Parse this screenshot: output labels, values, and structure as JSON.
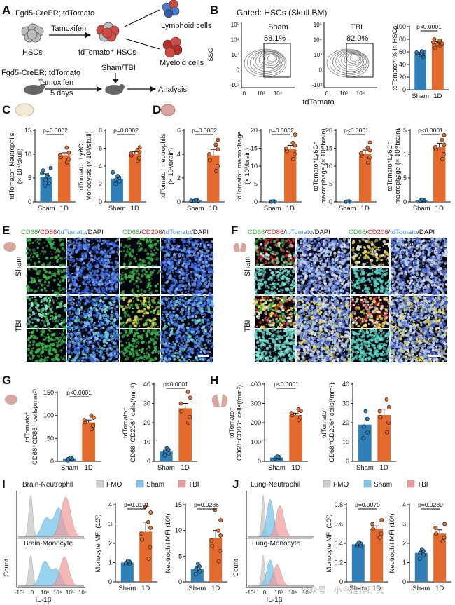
{
  "colors": {
    "sham": "#2f7fb8",
    "tbi": "#e36a2c",
    "fmo": "#cfcfcf",
    "sham_hist": "#7ec8ec",
    "tbi_hist": "#ef9a9a",
    "contour": "#666666"
  },
  "panel_a": {
    "letter": "A",
    "genotype_top": "Fgd5-CreER; tdTomato",
    "tamoxifen": "Tamoxifen",
    "hsc_label": "HSCs",
    "tdhsc_label": "tdTomato⁺ HSCs",
    "lymphoid": "Lymphoid cells",
    "myeloid": "Myeloid cells",
    "genotype_bottom": "Fgd5-CreER; tdTomato",
    "tamoxifen_bottom": "Tamoxifen",
    "days": "5 days",
    "sham_tbi": "Sham/TBI",
    "analysis": "Analysis"
  },
  "panel_b": {
    "letter": "B",
    "title": "Gated: HSCs (Skull BM)",
    "ylabel": "SSC",
    "xlabel": "tdTomato",
    "sham_label": "Sham",
    "sham_pct": "58.1%",
    "tbi_label": "TBI",
    "tbi_pct": "82.0%",
    "y_ticks": [
      "10⁵",
      "10⁴",
      "10³",
      "0",
      "-10³"
    ],
    "x_ticks": [
      "0",
      "10³",
      "10⁴"
    ]
  },
  "chart_data": [
    {
      "id": "B_bar",
      "type": "bar",
      "title": "",
      "ylabel": "tdTomato⁺ % in HSCs",
      "categories": [
        "Sham",
        "1D"
      ],
      "values": [
        57,
        74
      ],
      "sem": [
        2,
        2
      ],
      "ylim": [
        0,
        100
      ],
      "yticks": [
        0,
        20,
        40,
        60,
        80,
        100
      ],
      "pvalue": "p<0.0001",
      "points": [
        [
          52,
          55,
          56,
          57,
          58,
          59,
          60,
          61
        ],
        [
          66,
          70,
          72,
          73,
          75,
          76,
          78,
          80
        ]
      ]
    },
    {
      "id": "C1",
      "type": "bar",
      "ylabel": "tdTomato⁺ Neutrophils (× 10⁵/skull)",
      "categories": [
        "Sham",
        "1D"
      ],
      "values": [
        5.3,
        9.8
      ],
      "sem": [
        0.6,
        0.5
      ],
      "ylim": [
        0,
        15
      ],
      "yticks": [
        0,
        5,
        10,
        15
      ],
      "pvalue": "p=0.0002",
      "points": [
        [
          3.4,
          3.9,
          4.6,
          5.2,
          5.5,
          6.0,
          6.6,
          7.1
        ],
        [
          8.3,
          8.9,
          9.4,
          9.9,
          10.3,
          11.4
        ]
      ]
    },
    {
      "id": "C2",
      "type": "bar",
      "ylabel": "tdTomato⁺ Ly6C⁺ Monocytes (× 10⁵/skull)",
      "categories": [
        "Sham",
        "1D"
      ],
      "values": [
        2.6,
        5.4
      ],
      "sem": [
        0.2,
        0.2
      ],
      "ylim": [
        0,
        8
      ],
      "yticks": [
        0,
        2,
        4,
        6,
        8
      ],
      "pvalue": "p=0.0002",
      "points": [
        [
          2.0,
          2.3,
          2.5,
          2.7,
          2.9,
          3.3
        ],
        [
          4.6,
          4.9,
          5.2,
          5.4,
          5.6,
          5.8,
          6.1
        ]
      ]
    },
    {
      "id": "D1",
      "type": "bar",
      "ylabel": "tdTomato⁺ neutrophils (× 10³/brain)",
      "categories": [
        "Sham",
        "1D"
      ],
      "values": [
        0.1,
        3.9
      ],
      "sem": [
        0.02,
        0.5
      ],
      "ylim": [
        0,
        6
      ],
      "yticks": [
        0,
        2,
        4,
        6
      ],
      "pvalue": "p=0.0002",
      "points": [
        [
          0.05,
          0.08,
          0.1,
          0.12,
          0.15,
          0.1
        ],
        [
          2.6,
          3.0,
          3.5,
          4.0,
          4.4,
          4.8,
          5.2
        ]
      ]
    },
    {
      "id": "D2",
      "type": "bar",
      "ylabel": "tdTomato⁺ macrophage (× 10³/brain)",
      "categories": [
        "Sham",
        "1D"
      ],
      "values": [
        0.1,
        14.8
      ],
      "sem": [
        0.02,
        1.0
      ],
      "ylim": [
        0,
        20
      ],
      "yticks": [
        0,
        5,
        10,
        15,
        20
      ],
      "pvalue": "p=0.0002",
      "points": [
        [
          0.05,
          0.08,
          0.1,
          0.12,
          0.15
        ],
        [
          12.0,
          13.4,
          14.2,
          15.0,
          15.8,
          16.5,
          18.8
        ]
      ]
    },
    {
      "id": "D3",
      "type": "bar",
      "ylabel": "tdTomato⁺ Ly6C⁺ macrophage (× 10³/brain)",
      "categories": [
        "Sham",
        "1D"
      ],
      "values": [
        0.1,
        13.5
      ],
      "sem": [
        0.02,
        1.0
      ],
      "ylim": [
        0,
        20
      ],
      "yticks": [
        0,
        5,
        10,
        15,
        20
      ],
      "pvalue": "p<0.0001",
      "points": [
        [
          0.05,
          0.08,
          0.1,
          0.12,
          0.15
        ],
        [
          11.0,
          12.4,
          13.0,
          13.6,
          14.4,
          15.2,
          16.6
        ]
      ]
    },
    {
      "id": "D4",
      "type": "bar",
      "ylabel": "tdTomato⁺ Ly6C⁻ macrophage (× 10³/brain)",
      "categories": [
        "Sham",
        "1D"
      ],
      "values": [
        0.03,
        1.15
      ],
      "sem": [
        0.01,
        0.08
      ],
      "ylim": [
        0,
        1.5
      ],
      "yticks": [
        0,
        0.5,
        1.0,
        1.5
      ],
      "pvalue": "p<0.0001",
      "points": [
        [
          0.01,
          0.02,
          0.03,
          0.04,
          0.05
        ],
        [
          0.9,
          1.0,
          1.1,
          1.15,
          1.2,
          1.3,
          1.4
        ]
      ]
    },
    {
      "id": "G1",
      "type": "bar",
      "ylabel": "tdTomato⁺ CD68⁺CD86⁺ cells(/mm²)",
      "categories": [
        "Sham",
        "1D"
      ],
      "values": [
        5,
        85
      ],
      "sem": [
        1,
        5
      ],
      "ylim": [
        0,
        150
      ],
      "yticks": [
        0,
        50,
        100,
        150
      ],
      "pvalue": "p<0.0001",
      "points": [
        [
          2,
          4,
          5,
          6,
          8
        ],
        [
          70,
          78,
          85,
          90,
          95,
          100
        ]
      ]
    },
    {
      "id": "G2",
      "type": "bar",
      "ylabel": "tdTomato⁺ CD68⁺CD206⁺ cells(/mm²)",
      "categories": [
        "Sham",
        "1D"
      ],
      "values": [
        5,
        27.5
      ],
      "sem": [
        0.8,
        2.5
      ],
      "ylim": [
        0,
        40
      ],
      "yticks": [
        0,
        10,
        20,
        30,
        40
      ],
      "pvalue": "p<0.0001",
      "points": [
        [
          3,
          4,
          5,
          6,
          7
        ],
        [
          20,
          23,
          26,
          30,
          33,
          36
        ]
      ]
    },
    {
      "id": "H1",
      "type": "bar",
      "ylabel": "tdTomato⁺ CD68⁺CD86⁺ cells(/mm²)",
      "categories": [
        "Sham",
        "1D"
      ],
      "values": [
        20,
        240
      ],
      "sem": [
        3,
        10
      ],
      "ylim": [
        0,
        400
      ],
      "yticks": [
        0,
        100,
        200,
        300,
        400
      ],
      "pvalue": "p<0.0001",
      "points": [
        [
          15,
          18,
          20,
          22,
          25
        ],
        [
          215,
          228,
          240,
          250,
          262,
          270
        ]
      ]
    },
    {
      "id": "H2",
      "type": "bar",
      "ylabel": "tdTomato⁺ CD68⁺CD206⁺ cells(/mm²)",
      "categories": [
        "Sham",
        "1D"
      ],
      "values": [
        19,
        24
      ],
      "sem": [
        3,
        3
      ],
      "ylim": [
        0,
        40
      ],
      "yticks": [
        0,
        10,
        20,
        30,
        40
      ],
      "pvalue": "",
      "points": [
        [
          12,
          15,
          18,
          22,
          26
        ],
        [
          15,
          20,
          23,
          26,
          28,
          32
        ]
      ]
    },
    {
      "id": "I1",
      "type": "bar",
      "ylabel": "Monocyte MFI (10³)",
      "categories": [
        "Sham",
        "1D"
      ],
      "values": [
        1.0,
        2.6
      ],
      "sem": [
        0.05,
        0.5
      ],
      "ylim": [
        0,
        4
      ],
      "yticks": [
        0,
        1,
        2,
        3,
        4
      ],
      "pvalue": "p=0.0101",
      "points": [
        [
          0.9,
          0.95,
          1.0,
          1.05,
          1.1
        ],
        [
          1.2,
          1.8,
          2.2,
          2.5,
          2.8,
          3.1,
          3.6,
          3.9
        ]
      ]
    },
    {
      "id": "I2",
      "type": "bar",
      "ylabel": "Neutrophil MFI (10³)",
      "categories": [
        "Sham",
        "1D"
      ],
      "values": [
        2.5,
        8.5
      ],
      "sem": [
        0.5,
        1.5
      ],
      "ylim": [
        0,
        15
      ],
      "yticks": [
        0,
        5,
        10,
        15
      ],
      "pvalue": "p=0.0286",
      "points": [
        [
          1.5,
          2.0,
          2.5,
          3.0,
          3.5
        ],
        [
          4,
          6,
          7,
          8,
          9,
          10,
          12,
          14
        ]
      ]
    },
    {
      "id": "J1",
      "type": "bar",
      "ylabel": "Monocyte MFI (10³)",
      "categories": [
        "Sham",
        "1D"
      ],
      "values": [
        0.39,
        0.55
      ],
      "sem": [
        0.01,
        0.03
      ],
      "ylim": [
        0,
        0.8
      ],
      "yticks": [
        0,
        0.2,
        0.4,
        0.6,
        0.8
      ],
      "pvalue": "p=0.0079",
      "points": [
        [
          0.37,
          0.38,
          0.39,
          0.4,
          0.41
        ],
        [
          0.46,
          0.5,
          0.55,
          0.6,
          0.64
        ]
      ]
    },
    {
      "id": "J2",
      "type": "bar",
      "ylabel": "Neutrophil MFI (10³)",
      "categories": [
        "Sham",
        "1D"
      ],
      "values": [
        1.5,
        2.5
      ],
      "sem": [
        0.1,
        0.2
      ],
      "ylim": [
        0,
        4
      ],
      "yticks": [
        0,
        1,
        2,
        3,
        4
      ],
      "pvalue": "p=0.0280",
      "points": [
        [
          1.2,
          1.4,
          1.5,
          1.6,
          1.7
        ],
        [
          2.1,
          2.3,
          2.5,
          2.8,
          3.0
        ]
      ]
    }
  ],
  "panel_e": {
    "letter": "E",
    "header_left_parts": [
      [
        "CD68",
        "#3cb44b"
      ],
      [
        "/",
        "#111111"
      ],
      [
        "CD86",
        "#d62728"
      ],
      [
        "/",
        "#111111"
      ],
      [
        "tdTomato",
        "#4a90d9"
      ],
      [
        "/DAPI",
        "#111111"
      ]
    ],
    "header_right_parts": [
      [
        "CD68",
        "#3cb44b"
      ],
      [
        "/",
        "#111111"
      ],
      [
        "CD206",
        "#d62728"
      ],
      [
        "/",
        "#111111"
      ],
      [
        "tdTomato",
        "#4a90d9"
      ],
      [
        "/DAPI",
        "#111111"
      ]
    ],
    "row_sham": "Sham",
    "row_tbi": "TBI"
  },
  "panel_f": {
    "letter": "F",
    "header_left_parts": [
      [
        "CD68",
        "#3cb44b"
      ],
      [
        "/",
        "#111111"
      ],
      [
        "CD86",
        "#d62728"
      ],
      [
        "/",
        "#111111"
      ],
      [
        "tdTomato",
        "#4a90d9"
      ],
      [
        "/DAPI",
        "#111111"
      ]
    ],
    "header_right_parts": [
      [
        "CD68",
        "#3cb44b"
      ],
      [
        "/",
        "#111111"
      ],
      [
        "CD206",
        "#d62728"
      ],
      [
        "/",
        "#111111"
      ],
      [
        "tdTomato",
        "#4a90d9"
      ],
      [
        "/DAPI",
        "#111111"
      ]
    ],
    "row_sham": "Sham",
    "row_tbi": "TBI"
  },
  "panel_c": {
    "letter": "C"
  },
  "panel_d": {
    "letter": "D"
  },
  "panel_g": {
    "letter": "G"
  },
  "panel_h": {
    "letter": "H"
  },
  "panel_i": {
    "letter": "I",
    "hist_top": "Brain-Neutrophil",
    "hist_bottom": "Brain-Monocyte",
    "legend": [
      "FMO",
      "Sham",
      "TBI"
    ],
    "ylabel": "Count",
    "xlabel": "IL-1β",
    "x_ticks": [
      "-10³",
      "0",
      "10³",
      "10⁴",
      "10⁵",
      "10⁶"
    ]
  },
  "panel_j": {
    "letter": "J",
    "hist_top": "Lung-Neutrophil",
    "hist_bottom": "Lung-Monocyte",
    "legend": [
      "FMO",
      "Sham",
      "TBI"
    ],
    "ylabel": "Count",
    "xlabel": "IL-1β",
    "x_ticks": [
      "-10³",
      "0",
      "10³",
      "10⁴",
      "10⁵"
    ]
  },
  "watermark": "公众号 · 小鸟硅作研究"
}
